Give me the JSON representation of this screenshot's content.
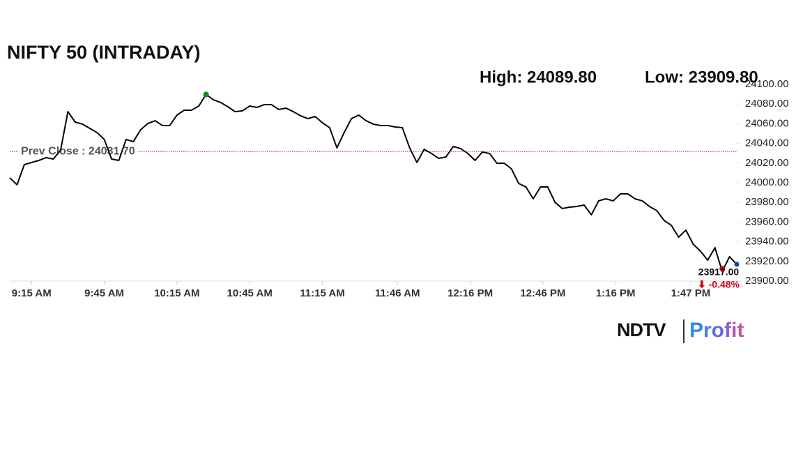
{
  "chart_data": {
    "type": "line",
    "title": "NIFTY 50 (INTRADAY)",
    "high_text": "High: 24089.80",
    "low_text": "Low: 23909.80",
    "prev_close": {
      "value": 24031.7,
      "label": "Prev Close : 24031.70"
    },
    "end_label": "23917.00",
    "change_label": "⬇ -0.48%",
    "logo": {
      "brand": "NDTV",
      "product": "Profit"
    },
    "x": [
      546,
      549,
      552,
      555,
      558,
      561,
      564,
      567,
      570,
      573,
      576,
      579,
      582,
      585,
      588,
      591,
      594,
      597,
      600,
      603,
      606,
      609,
      612,
      615,
      618,
      621,
      624,
      627,
      630,
      633,
      636,
      639,
      642,
      645,
      648,
      651,
      654,
      657,
      660,
      663,
      666,
      669,
      672,
      675,
      678,
      681,
      684,
      687,
      690,
      693,
      696,
      699,
      702,
      705,
      708,
      711,
      714,
      717,
      720,
      723,
      726,
      729,
      732,
      735,
      738,
      741,
      744,
      747,
      750,
      753,
      756,
      759,
      762,
      765,
      768,
      771,
      774,
      777,
      780,
      783,
      786,
      789,
      792,
      795,
      798,
      801,
      804,
      807,
      810,
      813,
      816,
      819,
      822,
      825,
      828,
      831,
      834,
      837,
      840,
      843,
      846
    ],
    "series": [
      {
        "color": "#000000",
        "values": [
          24005.0,
          23997.9,
          24018.4,
          24020.6,
          24022.7,
          24025.5,
          24024.1,
          24033.3,
          24072.3,
          24061.7,
          24059.6,
          24055.3,
          24051.1,
          24044.0,
          24024.1,
          24022.7,
          24044.0,
          24041.8,
          24053.9,
          24060.3,
          24063.1,
          24058.2,
          24058.2,
          24068.8,
          24073.8,
          24073.8,
          24078.0,
          24089.8,
          24084.4,
          24081.6,
          24077.3,
          24072.3,
          24073.1,
          24078.0,
          24076.6,
          24079.4,
          24079.4,
          24074.5,
          24075.9,
          24072.3,
          24068.1,
          24065.2,
          24067.4,
          24061.0,
          24056.0,
          24035.5,
          24051.1,
          24065.2,
          24068.8,
          24063.1,
          24059.6,
          24058.2,
          24058.2,
          24056.7,
          24056.0,
          24035.5,
          24020.6,
          24034.0,
          24029.8,
          24024.8,
          24026.2,
          24036.9,
          24034.8,
          24029.8,
          24022.7,
          24031.2,
          24029.8,
          24019.9,
          24019.9,
          24014.2,
          23999.3,
          23995.7,
          23983.7,
          23995.7,
          23995.7,
          23980.1,
          23973.8,
          23975.2,
          23975.9,
          23977.3,
          23967.4,
          23981.6,
          23983.7,
          23981.6,
          23988.7,
          23988.7,
          23983.7,
          23981.6,
          23975.9,
          23971.6,
          23961.7,
          23956.7,
          23944.7,
          23951.8,
          23937.6,
          23930.5,
          23921.3,
          23934.0,
          23909.8,
          23924.8,
          23917.0
        ]
      }
    ],
    "xlim": [
      546,
      846
    ],
    "xticks": [
      {
        "value": 555,
        "label": "9:15 AM"
      },
      {
        "value": 585,
        "label": "9:45 AM"
      },
      {
        "value": 615,
        "label": "10:15 AM"
      },
      {
        "value": 645,
        "label": "10:45 AM"
      },
      {
        "value": 675,
        "label": "11:15 AM"
      },
      {
        "value": 706,
        "label": "11:46 AM"
      },
      {
        "value": 736,
        "label": "12:16 PM"
      },
      {
        "value": 766,
        "label": "12:46 PM"
      },
      {
        "value": 796,
        "label": "1:16 PM"
      },
      {
        "value": 827,
        "label": "1:47 PM"
      }
    ],
    "ylim": [
      23900,
      24100
    ],
    "yticks": [
      {
        "value": 23900,
        "label": "23900.00"
      },
      {
        "value": 23920,
        "label": "23920.00"
      },
      {
        "value": 23940,
        "label": "23940.00"
      },
      {
        "value": 23960,
        "label": "23960.00"
      },
      {
        "value": 23980,
        "label": "23980.00"
      },
      {
        "value": 24000,
        "label": "24000.00"
      },
      {
        "value": 24020,
        "label": "24020.00"
      },
      {
        "value": 24040,
        "label": "24040.00"
      },
      {
        "value": 24060,
        "label": "24060.00"
      },
      {
        "value": 24080,
        "label": "24080.00"
      },
      {
        "value": 24100,
        "label": "24100.00"
      }
    ],
    "grid": false
  }
}
